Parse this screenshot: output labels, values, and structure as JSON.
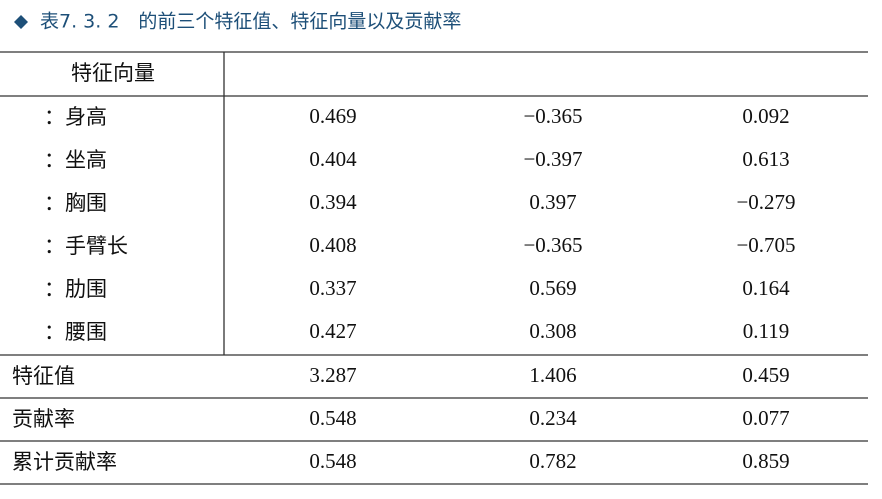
{
  "title": "表7. 3. 2　的前三个特征值、特征向量以及贡献率",
  "table": {
    "header": "特征向量",
    "vector_rows": [
      [
        "：身高",
        "0.469",
        "−0.365",
        "0.092"
      ],
      [
        "：坐高",
        "0.404",
        "−0.397",
        "0.613"
      ],
      [
        "：胸围",
        "0.394",
        "0.397",
        "−0.279"
      ],
      [
        "：手臂长",
        "0.408",
        "−0.365",
        "−0.705"
      ],
      [
        "：肋围",
        "0.337",
        "0.569",
        "0.164"
      ],
      [
        "：腰围",
        "0.427",
        "0.308",
        "0.119"
      ]
    ],
    "summary_rows": [
      [
        "特征值",
        "3.287",
        "1.406",
        "0.459"
      ],
      [
        "贡献率",
        "0.548",
        "0.234",
        "0.077"
      ],
      [
        "累计贡献率",
        "0.548",
        "0.782",
        "0.859"
      ]
    ]
  }
}
